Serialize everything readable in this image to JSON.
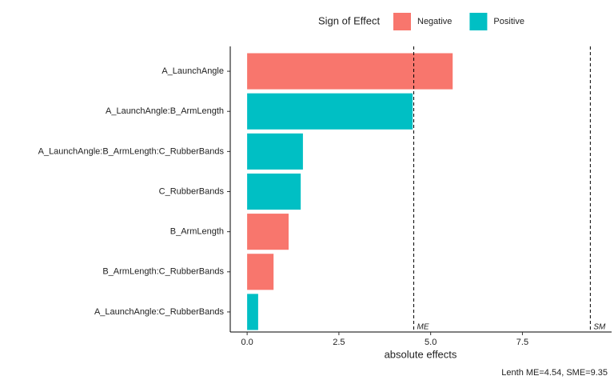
{
  "chart_data": {
    "type": "bar",
    "orientation": "horizontal",
    "categories": [
      "A_LaunchAngle",
      "A_LaunchAngle:B_ArmLength",
      "A_LaunchAngle:B_ArmLength:C_RubberBands",
      "C_RubberBands",
      "B_ArmLength",
      "B_ArmLength:C_RubberBands",
      "A_LaunchAngle:C_RubberBands"
    ],
    "series": [
      {
        "name": "Negative",
        "color": "#F8766D",
        "values": [
          5.6,
          null,
          null,
          null,
          1.13,
          0.72,
          null
        ]
      },
      {
        "name": "Positive",
        "color": "#00BFC4",
        "values": [
          null,
          4.51,
          1.52,
          1.46,
          null,
          null,
          0.3
        ]
      }
    ],
    "legend_title": "Sign of Effect",
    "legend_position": "top",
    "xlabel": "absolute effects",
    "xlim": [
      -0.46,
      9.93
    ],
    "xticks": [
      {
        "value": 0,
        "label": "0.0"
      },
      {
        "value": 2.5,
        "label": "2.5"
      },
      {
        "value": 5,
        "label": "5.0"
      },
      {
        "value": 7.5,
        "label": "7.5"
      }
    ],
    "reference_lines": [
      {
        "value": 4.54,
        "label": "ME"
      },
      {
        "value": 9.35,
        "label": "SM"
      }
    ],
    "caption": "Lenth ME=4.54, SME=9.35",
    "grid": false
  }
}
